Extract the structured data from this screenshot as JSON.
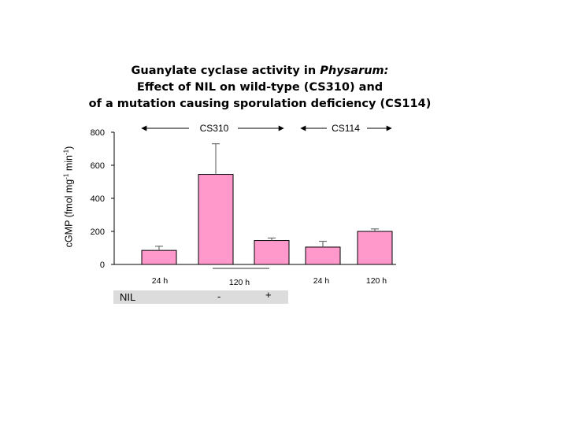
{
  "title": {
    "line1_prefix": "Guanylate cyclase activity in ",
    "line1_italic": "Physarum:",
    "line2": "Effect of NIL on wild-type (CS310) and",
    "line3": "of a mutation causing sporulation deficiency (CS114)"
  },
  "ylabel": {
    "prefix": "cGMP (fmol mg",
    "sup1": "-1",
    "middle": " min",
    "sup2": "-1",
    "suffix": ")"
  },
  "nil": {
    "label": "NIL",
    "minus": "-",
    "plus": "+"
  },
  "chart_data": {
    "type": "bar",
    "categories": [
      "24 h",
      "120 h",
      "120 h",
      "24 h",
      "120 h"
    ],
    "values": [
      85,
      545,
      145,
      105,
      200
    ],
    "errors": [
      25,
      185,
      15,
      35,
      15
    ],
    "tick_labels": [
      "24 h",
      "120 h",
      "24 h",
      "120 h"
    ],
    "groups": [
      {
        "name": "CS310",
        "bars": [
          0,
          1,
          2
        ]
      },
      {
        "name": "CS114",
        "bars": [
          3,
          4
        ]
      }
    ],
    "ylim": [
      0,
      800
    ],
    "yticks": [
      0,
      200,
      400,
      600,
      800
    ],
    "bar_color": "#ff99cc",
    "grid": false
  }
}
